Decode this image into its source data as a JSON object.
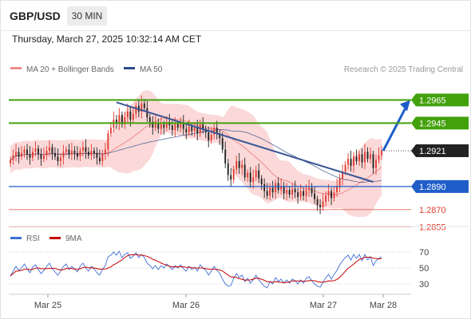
{
  "header": {
    "symbol": "GBP/USD",
    "timeframe": "30 MIN",
    "datetime": "Thursday, March 27, 2025 10:32:14 AM CET"
  },
  "legend": {
    "ma20_label": "MA 20 + Bollinger Bands",
    "ma50_label": "MA 50",
    "credit": "Research © 2025 Trading Central"
  },
  "rsi_legend": {
    "rsi_label": "RSI",
    "ma9_label": "9MA"
  },
  "colors": {
    "green": "#43a10c",
    "blue": "#1f5ec9",
    "red": "#e03c31",
    "black": "#222222",
    "candle_up": "#e03c31",
    "candle_down": "#222222",
    "bollinger_fill": "#f9c9c9",
    "ma20": "#f08a8a",
    "ma50": "#2c4a8a",
    "trendline": "#3a5795",
    "rsi": "#3f6fd8",
    "rsi_ma": "#c40000"
  },
  "chart_data": [
    {
      "type": "candlestick",
      "x_ticks": [
        "Mar 25",
        "Mar 26",
        "Mar 27",
        "Mar 28"
      ],
      "ylim": [
        1.2845,
        1.2995
      ],
      "current_price": "1.2921",
      "price_levels": [
        {
          "label": "1.2965",
          "value": 1.2965,
          "kind": "resistance-2",
          "color": "green"
        },
        {
          "label": "1.2945",
          "value": 1.2945,
          "kind": "resistance-1",
          "color": "green"
        },
        {
          "label": "1.2921",
          "value": 1.2921,
          "kind": "last-price",
          "color": "black"
        },
        {
          "label": "1.2890",
          "value": 1.289,
          "kind": "pivot",
          "color": "blue"
        },
        {
          "label": "1.2870",
          "value": 1.287,
          "kind": "support-1",
          "color": "red"
        },
        {
          "label": "1.2855",
          "value": 1.2855,
          "kind": "support-2",
          "color": "red"
        }
      ],
      "series": [
        {
          "name": "MA 20 + Bollinger Bands"
        },
        {
          "name": "MA 50"
        }
      ],
      "closes": [
        1.2913,
        1.2917,
        1.292,
        1.2916,
        1.2919,
        1.2922,
        1.2918,
        1.2915,
        1.292,
        1.2923,
        1.2918,
        1.2914,
        1.2917,
        1.2921,
        1.2924,
        1.2919,
        1.2916,
        1.2912,
        1.2915,
        1.292,
        1.2922,
        1.2918,
        1.2921,
        1.2919,
        1.2916,
        1.2921,
        1.2924,
        1.292,
        1.2917,
        1.2921,
        1.2919,
        1.2915,
        1.2912,
        1.2918,
        1.2922,
        1.2936,
        1.2941,
        1.2948,
        1.2945,
        1.2952,
        1.2944,
        1.295,
        1.2955,
        1.2948,
        1.2953,
        1.296,
        1.2955,
        1.2962,
        1.2958,
        1.295,
        1.2946,
        1.2941,
        1.2945,
        1.294,
        1.2944,
        1.2941,
        1.2946,
        1.2943,
        1.2939,
        1.2944,
        1.2941,
        1.2945,
        1.294,
        1.2937,
        1.2942,
        1.2938,
        1.2941,
        1.2936,
        1.2944,
        1.294,
        1.2937,
        1.293,
        1.2935,
        1.2941,
        1.2936,
        1.2932,
        1.2922,
        1.291,
        1.29,
        1.2896,
        1.2905,
        1.2912,
        1.2906,
        1.2909,
        1.2898,
        1.2902,
        1.2894,
        1.2898,
        1.2904,
        1.2897,
        1.2892,
        1.2886,
        1.2882,
        1.2889,
        1.2885,
        1.2893,
        1.2887,
        1.289,
        1.2884,
        1.2887,
        1.2883,
        1.2888,
        1.2885,
        1.2881,
        1.2886,
        1.2882,
        1.2887,
        1.2889,
        1.2884,
        1.2879,
        1.2874,
        1.2872,
        1.2877,
        1.2882,
        1.2886,
        1.288,
        1.2885,
        1.289,
        1.2897,
        1.2903,
        1.2909,
        1.2914,
        1.2908,
        1.2916,
        1.2912,
        1.2918,
        1.2911,
        1.292,
        1.2914,
        1.2918,
        1.2906,
        1.2913,
        1.2917,
        1.2921
      ]
    },
    {
      "type": "line",
      "x_ticks": [
        "Mar 25",
        "Mar 26",
        "Mar 27",
        "Mar 28"
      ],
      "ylim": [
        20,
        80
      ],
      "y_ticks": [
        "70",
        "50",
        "30"
      ],
      "series": [
        {
          "name": "RSI",
          "values": [
            40,
            46,
            52,
            47,
            50,
            55,
            49,
            44,
            51,
            54,
            48,
            43,
            47,
            52,
            56,
            49,
            45,
            41,
            46,
            52,
            55,
            48,
            52,
            49,
            45,
            52,
            56,
            50,
            46,
            52,
            49,
            44,
            41,
            48,
            53,
            64,
            66,
            70,
            66,
            71,
            63,
            67,
            69,
            62,
            65,
            69,
            63,
            67,
            63,
            56,
            53,
            49,
            53,
            48,
            53,
            50,
            55,
            52,
            48,
            53,
            50,
            54,
            49,
            46,
            52,
            48,
            51,
            46,
            54,
            50,
            47,
            41,
            46,
            52,
            47,
            43,
            36,
            30,
            27,
            28,
            37,
            43,
            38,
            41,
            33,
            37,
            31,
            35,
            41,
            35,
            31,
            27,
            25,
            33,
            30,
            38,
            33,
            36,
            31,
            35,
            31,
            36,
            34,
            30,
            35,
            31,
            37,
            39,
            34,
            30,
            27,
            26,
            32,
            38,
            42,
            36,
            42,
            47,
            54,
            59,
            63,
            66,
            60,
            67,
            62,
            67,
            59,
            67,
            60,
            64,
            53,
            59,
            62,
            64
          ]
        },
        {
          "name": "9MA"
        }
      ]
    }
  ],
  "rsi_x_ticks": [
    "Mar 25",
    "Mar 26",
    "Mar 27",
    "Mar 28"
  ]
}
